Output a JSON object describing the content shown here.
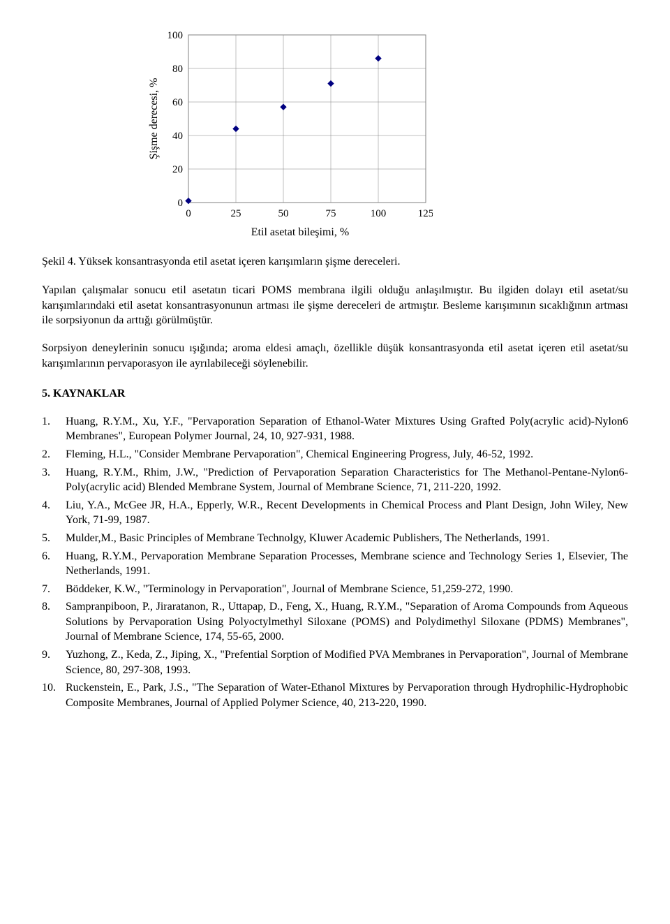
{
  "chart": {
    "type": "scatter",
    "xlabel": "Etil asetat bileşimi, %",
    "ylabel": "Şişme derecesi, %",
    "xlim": [
      0,
      125
    ],
    "ylim": [
      0,
      100
    ],
    "xticks": [
      0,
      25,
      50,
      75,
      100,
      125
    ],
    "yticks": [
      0,
      20,
      40,
      60,
      80,
      100
    ],
    "tick_fontsize": 15,
    "label_fontsize": 16,
    "axis_color": "#000000",
    "grid_color": "#808080",
    "grid_on": true,
    "background_color": "#ffffff",
    "marker": "diamond",
    "marker_size": 8,
    "marker_color": "#000080",
    "points": [
      {
        "x": 0,
        "y": 1
      },
      {
        "x": 25,
        "y": 44
      },
      {
        "x": 50,
        "y": 57
      },
      {
        "x": 75,
        "y": 71
      },
      {
        "x": 100,
        "y": 86
      }
    ]
  },
  "caption": "Şekil 4. Yüksek konsantrasyonda etil asetat içeren karışımların şişme dereceleri.",
  "paragraphs": {
    "p1": "Yapılan çalışmalar sonucu etil asetatın ticari POMS membrana ilgili olduğu anlaşılmıştır. Bu ilgiden dolayı etil asetat/su karışımlarındaki etil asetat konsantrasyonunun artması ile şişme dereceleri de artmıştır. Besleme karışımının sıcaklığının artması ile sorpsiyonun da arttığı görülmüştür.",
    "p2": "Sorpsiyon deneylerinin sonucu ışığında; aroma eldesi amaçlı, özellikle düşük konsantrasyonda etil asetat içeren etil asetat/su karışımlarının pervaporasyon ile ayrılabileceği söylenebilir."
  },
  "section_heading": "5.   KAYNAKLAR",
  "references": [
    "Huang, R.Y.M., Xu, Y.F., \"Pervaporation Separation of Ethanol-Water Mixtures Using Grafted Poly(acrylic acid)-Nylon6 Membranes\", European Polymer Journal, 24, 10, 927-931, 1988.",
    "Fleming, H.L., \"Consider Membrane Pervaporation\", Chemical Engineering Progress, July, 46-52, 1992.",
    "Huang, R.Y.M., Rhim, J.W., \"Prediction of Pervaporation Separation Characteristics for The Methanol-Pentane-Nylon6- Poly(acrylic acid) Blended Membrane System, Journal of Membrane Science, 71, 211-220, 1992.",
    "Liu, Y.A., McGee JR, H.A., Epperly, W.R., Recent Developments in Chemical Process and Plant Design, John Wiley, New York, 71-99, 1987.",
    "Mulder,M., Basic Principles of Membrane Technolgy, Kluwer Academic Publishers, The Netherlands, 1991.",
    "Huang, R.Y.M., Pervaporation Membrane Separation Processes, Membrane science and Technology Series 1, Elsevier, The Netherlands, 1991.",
    "Böddeker, K.W., \"Terminology in Pervaporation\", Journal of Membrane Science, 51,259-272, 1990.",
    "Sampranpiboon, P., Jiraratanon, R., Uttapap, D., Feng, X., Huang, R.Y.M., \"Separation of Aroma Compounds from Aqueous Solutions by Pervaporation Using Polyoctylmethyl Siloxane (POMS) and Polydimethyl Siloxane (PDMS) Membranes\", Journal of Membrane Science, 174, 55-65, 2000.",
    "Yuzhong, Z., Keda, Z., Jiping, X., \"Prefential Sorption of Modified PVA Membranes in Pervaporation\", Journal of Membrane Science, 80, 297-308, 1993.",
    "Ruckenstein, E., Park, J.S., \"The Separation of Water-Ethanol Mixtures by Pervaporation through Hydrophilic-Hydrophobic Composite Membranes, Journal of Applied Polymer Science, 40, 213-220, 1990."
  ]
}
